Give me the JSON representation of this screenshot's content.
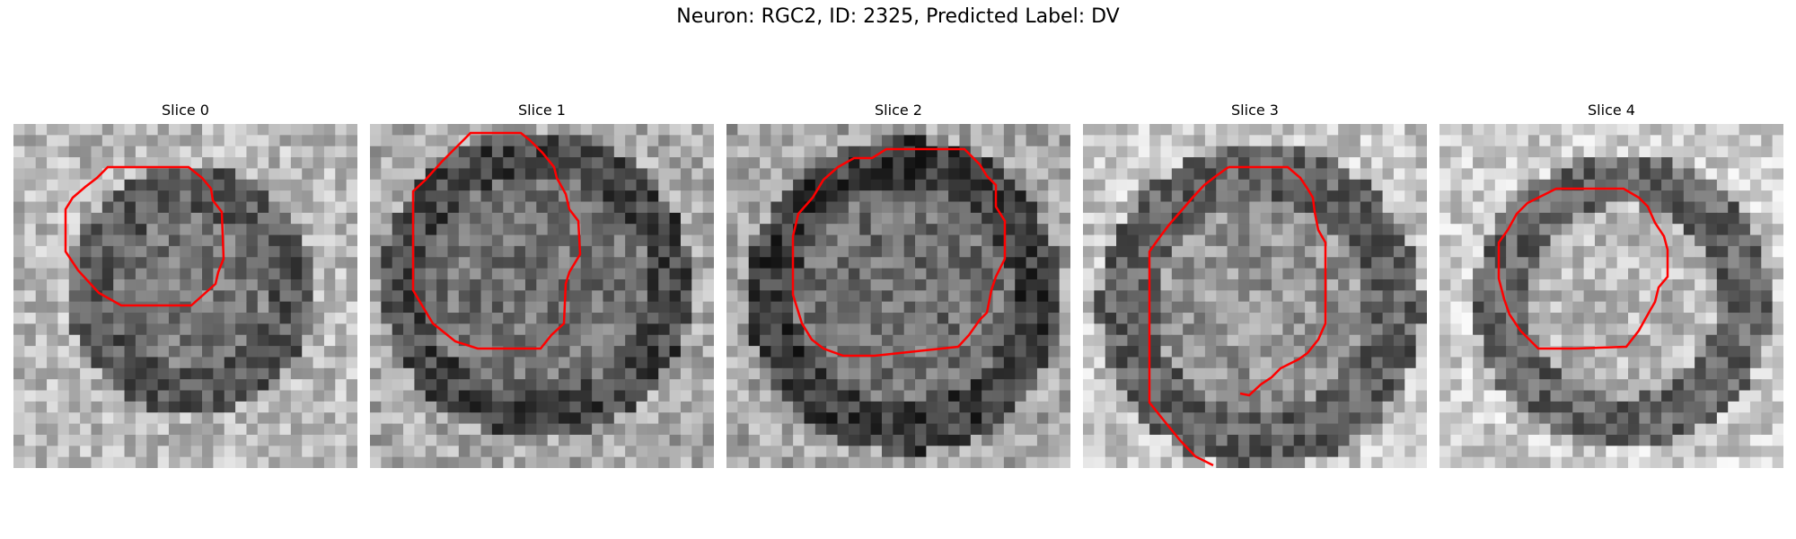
{
  "figure": {
    "title": "Neuron: RGC2, ID: 2325, Predicted Label: DV"
  },
  "panels": [
    {
      "title": "Slice 0"
    },
    {
      "title": "Slice 1"
    },
    {
      "title": "Slice 2"
    },
    {
      "title": "Slice 3"
    },
    {
      "title": "Slice 4"
    }
  ],
  "contour_color": "#ff0000",
  "image_style": "grayscale noisy microscopy slice with dark ring-shaped cell body"
}
